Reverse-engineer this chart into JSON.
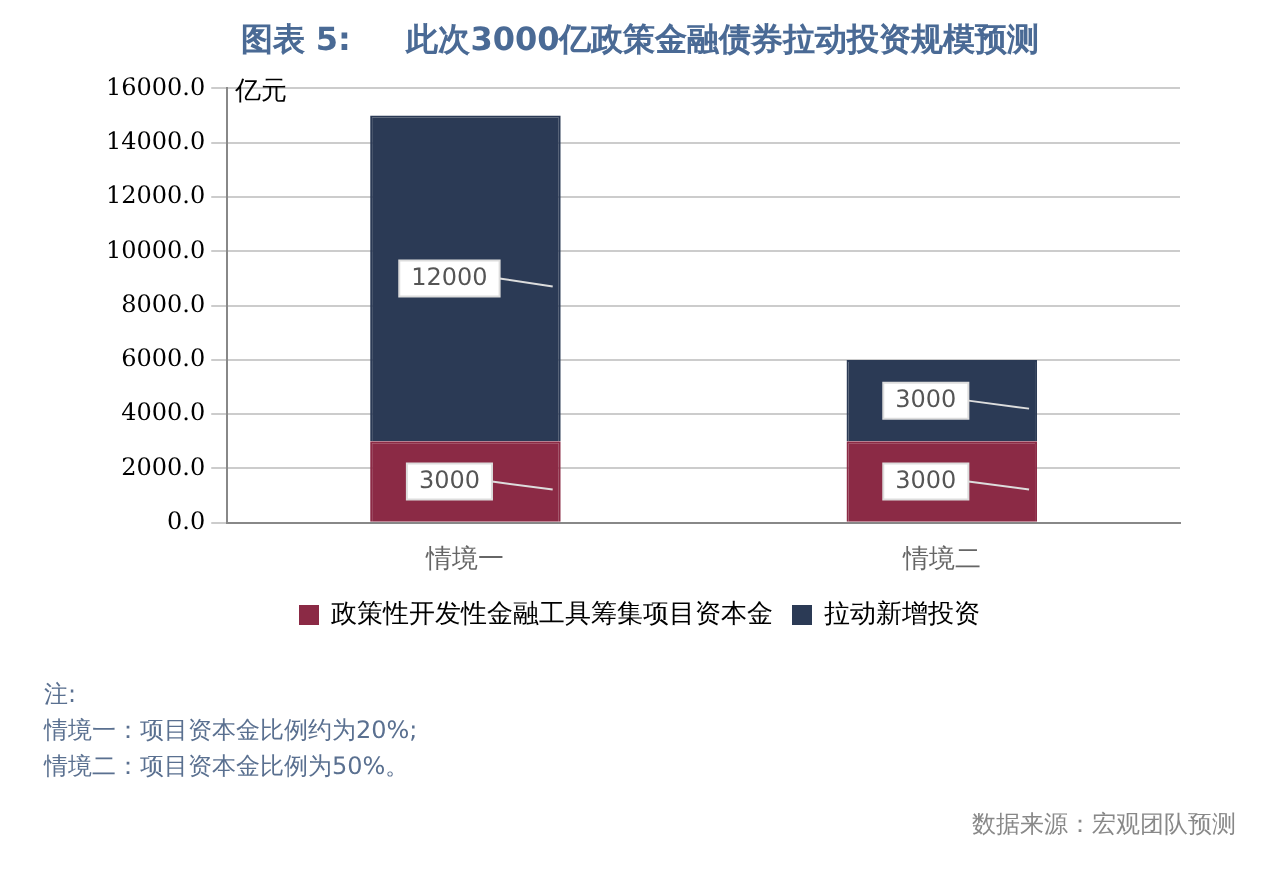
{
  "chart_data": {
    "type": "bar",
    "title": "图表 5:     此次3000亿政策金融债券拉动投资规模预测",
    "ylabel": "亿元",
    "categories": [
      "情境一",
      "情境二"
    ],
    "series": [
      {
        "name": "政策性开发性金融工具筹集项目资本金",
        "color": "#8b2a45",
        "values": [
          3000,
          3000
        ]
      },
      {
        "name": "拉动新增投资",
        "color": "#2b3a55",
        "values": [
          12000,
          3000
        ]
      }
    ],
    "stacked": true,
    "data_labels": true,
    "grid": "y",
    "legend": "bottom",
    "ylim": [
      0,
      16000
    ],
    "yticks": [
      {
        "value": 0,
        "label": "0.0"
      },
      {
        "value": 2000,
        "label": "2000.0"
      },
      {
        "value": 4000,
        "label": "4000.0"
      },
      {
        "value": 6000,
        "label": "6000.0"
      },
      {
        "value": 8000,
        "label": "8000.0"
      },
      {
        "value": 10000,
        "label": "10000.0"
      },
      {
        "value": 12000,
        "label": "12000.0"
      },
      {
        "value": 14000,
        "label": "14000.0"
      },
      {
        "value": 16000,
        "label": "16000.0"
      }
    ],
    "annotations": [
      "注:",
      "情境一：项目资本金比例约为20%;",
      "情境二：项目资本金比例为50%。",
      "数据来源：宏观团队预测"
    ]
  }
}
